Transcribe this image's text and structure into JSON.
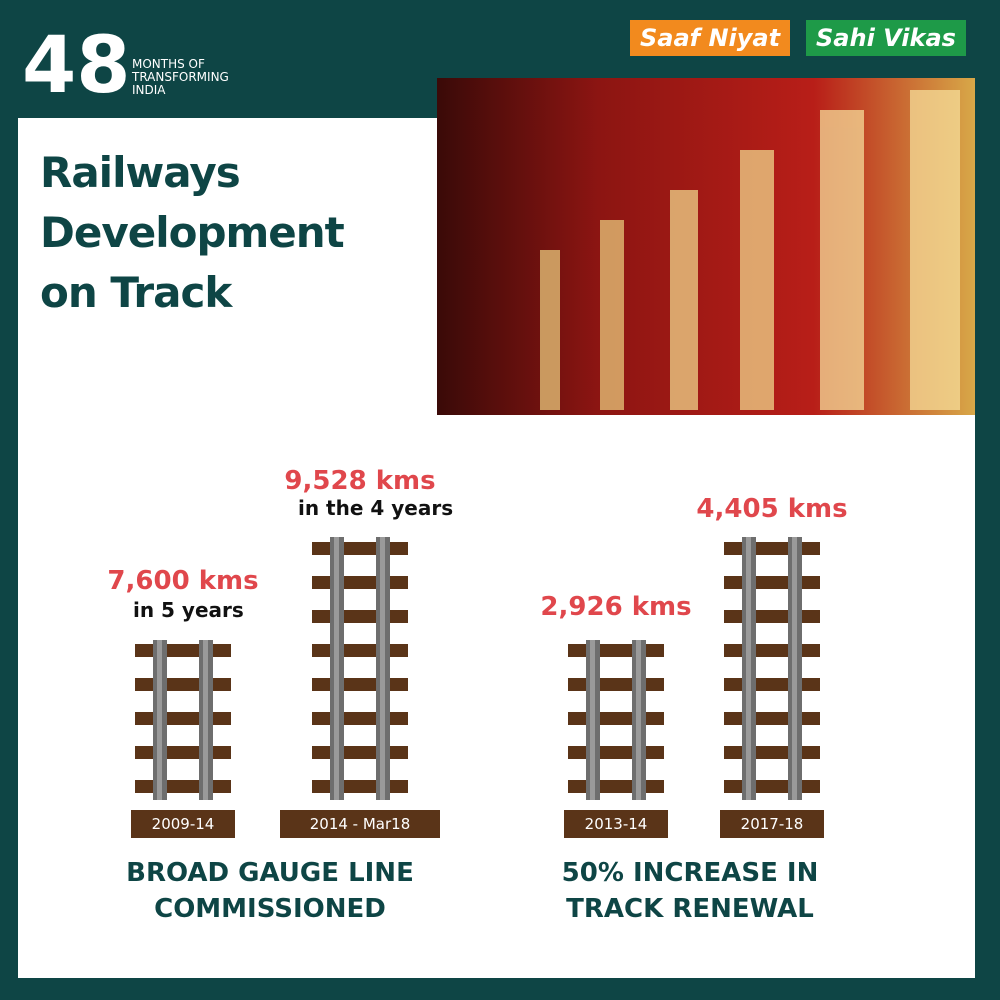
{
  "header": {
    "badge_number": "48",
    "badge_text": [
      "MONTHS OF",
      "TRANSFORMING",
      "INDIA"
    ],
    "tags": [
      "Saaf Niyat",
      "Sahi Vikas"
    ]
  },
  "title": [
    "Railways",
    "Development",
    "on Track"
  ],
  "panels": [
    {
      "items": [
        {
          "value": "7,600 kms",
          "note": "in 5 years",
          "period": "2009-14"
        },
        {
          "value": "9,528 kms",
          "note": "in the 4 years",
          "period": "2014 - Mar18"
        }
      ],
      "caption": [
        "BROAD GAUGE LINE",
        "COMMISSIONED"
      ]
    },
    {
      "items": [
        {
          "value": "2,926 kms",
          "period": "2013-14"
        },
        {
          "value": "4,405 kms",
          "period": "2017-18"
        }
      ],
      "caption": [
        "50% INCREASE IN",
        "TRACK RENEWAL"
      ]
    }
  ]
}
